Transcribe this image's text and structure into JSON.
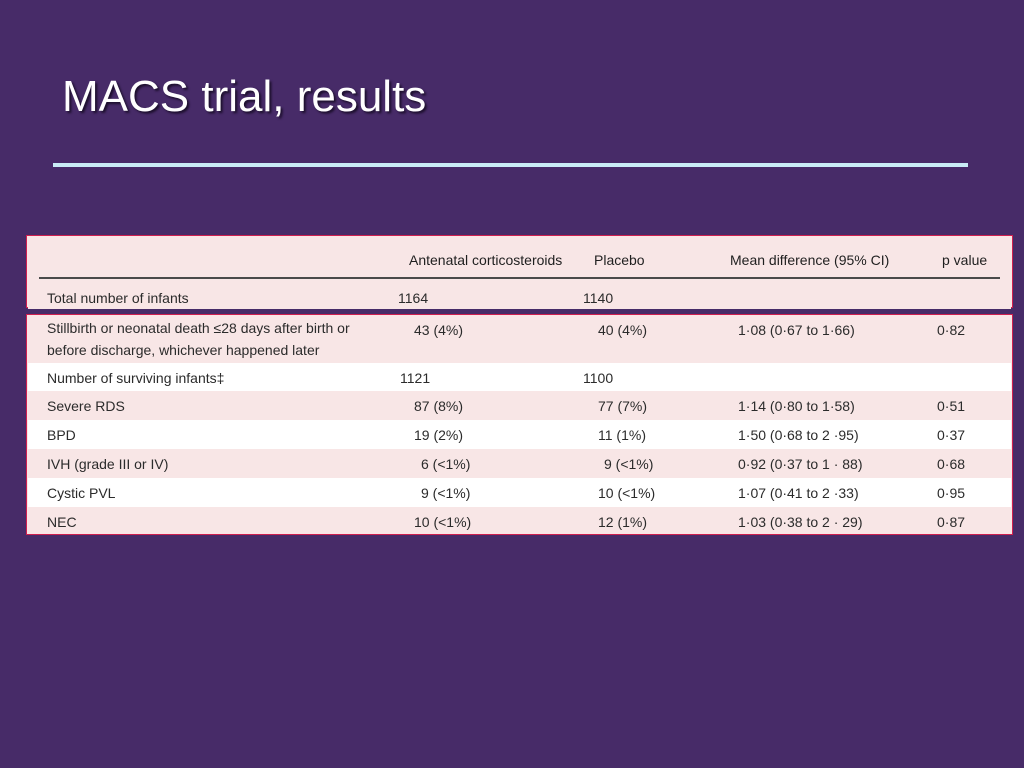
{
  "title": "MACS trial, results",
  "table": {
    "headers": {
      "label": "",
      "antenatal": "Antenatal corticosteroids",
      "placebo": "Placebo",
      "mean_diff": "Mean difference (95% CI)",
      "p_value": "p value"
    },
    "total_row": {
      "label": "Total number of infants",
      "antenatal": "1164",
      "placebo": "1140"
    },
    "rows": [
      {
        "label": "Stillbirth or neonatal death ≤28 days after birth or before discharge, whichever happened later",
        "antenatal": "43 (4%)",
        "placebo": "40 (4%)",
        "mean_diff": "1·08 (0·67 to 1·66)",
        "p_value": "0·82"
      },
      {
        "label": "Number of surviving infants‡",
        "antenatal": "1121",
        "placebo": "1100",
        "mean_diff": "",
        "p_value": ""
      },
      {
        "label": "Severe RDS",
        "antenatal": "87 (8%)",
        "placebo": "77 (7%)",
        "mean_diff": "1·14 (0·80 to 1·58)",
        "p_value": "0·51"
      },
      {
        "label": "BPD",
        "antenatal": "19 (2%)",
        "placebo": "11 (1%)",
        "mean_diff": "1·50 (0·68 to 2 ·95)",
        "p_value": "0·37"
      },
      {
        "label": "IVH (grade III or IV)",
        "antenatal": "6 (<1%)",
        "placebo": "9 (<1%)",
        "mean_diff": "0·92 (0·37 to 1 · 88)",
        "p_value": "0·68"
      },
      {
        "label": "Cystic PVL",
        "antenatal": "9 (<1%)",
        "placebo": "10 (<1%)",
        "mean_diff": "1·07 (0·41 to 2 ·33)",
        "p_value": "0·95"
      },
      {
        "label": "NEC",
        "antenatal": "10 (<1%)",
        "placebo": "12 (1%)",
        "mean_diff": "1·03 (0·38 to 2 · 29)",
        "p_value": "0·87"
      }
    ]
  }
}
